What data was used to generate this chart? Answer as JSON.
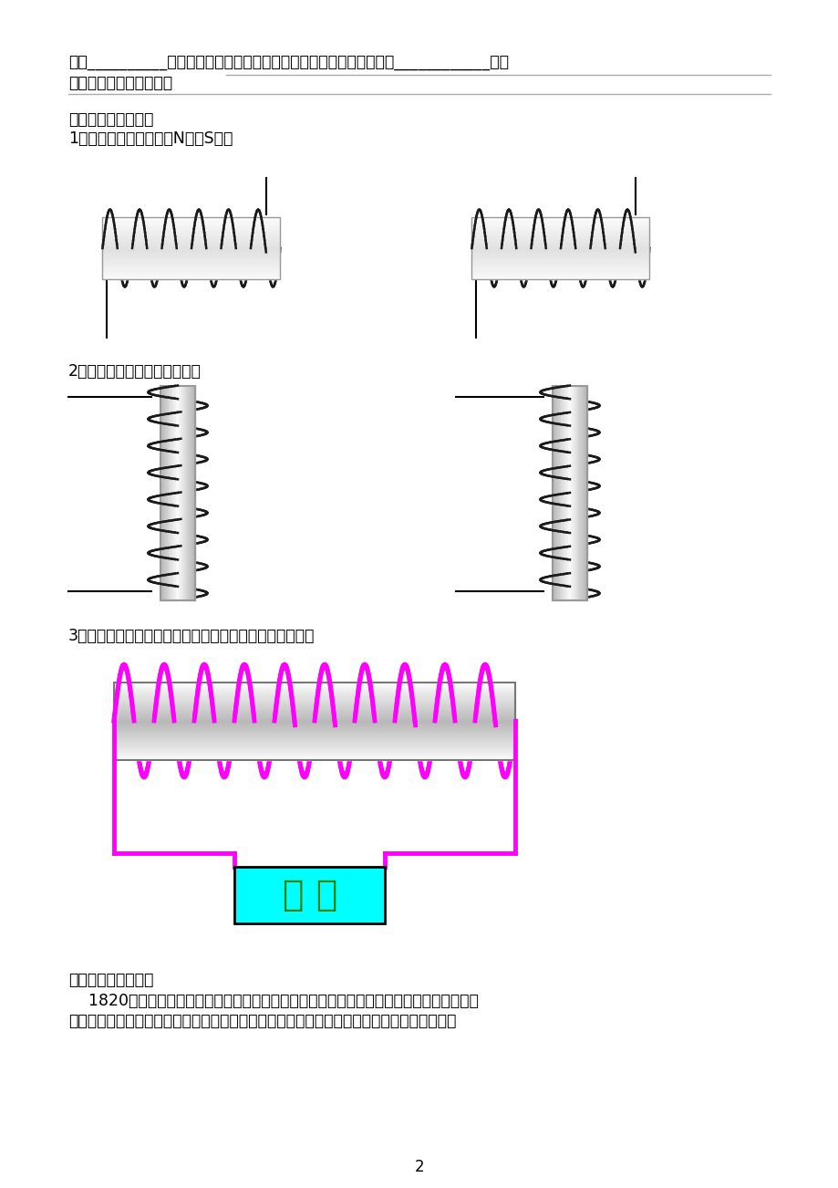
{
  "bg_color": "#ffffff",
  "text_color": "#000000",
  "line1": "性跟__________有关。通电螺线管的磁性跟电流的方向之间的关系可用____________来判",
  "line2": "定，安培定则的内容是：",
  "section3": "（三）、巩固练习：",
  "q1": "1．判断下面螺线管中的N极和S极：",
  "q2": "2．判断螺线管中的电流方向：",
  "q3": "3．根据小磁针静止时指针的指向，判断出电源的正负极。",
  "section4": "（四）、拓展延伸：",
  "para4_line1": "    1820年，安培在科学院的例会上做了一个小实验引起到会的科学家的兴趣：把螺线管水平",
  "para4_line2": "悬挂起来，然后给导线通电，想一想会发生什么现象？实际做一做，看看你的判断是否正确。",
  "page_num": "2",
  "magenta_color": "#ff00ff",
  "cyan_color": "#00ffff",
  "green_color": "#008000",
  "gray_line_color": "#aaaaaa",
  "coil_color": "#1a1a1a",
  "cyl_border": "#999999"
}
